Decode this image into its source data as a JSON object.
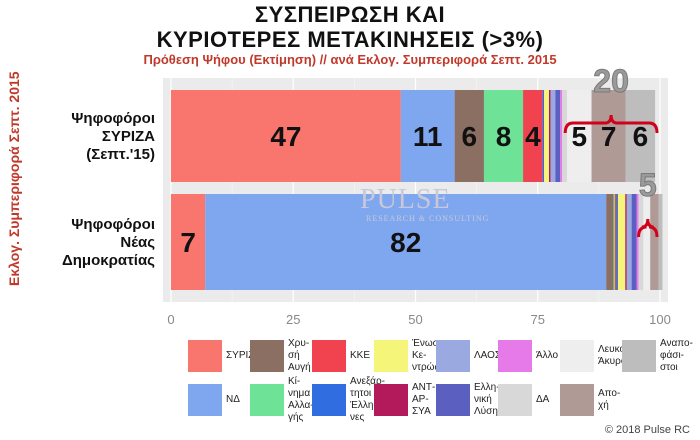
{
  "title_line1": "ΣΥΣΠΕΙΡΩΣΗ ΚΑΙ",
  "title_line2": "ΚΥΡΙΟΤΕΡΕΣ ΜΕΤΑΚΙΝΗΣΕΙΣ (>3%)",
  "subtitle": "Πρόθεση Ψήφου (Εκτίμηση) // ανά Εκλογ. Συμπεριφορά Σεπτ. 2015",
  "watermark": "PULSE",
  "watermark_sub": "RESEARCH & CONSULTING",
  "copyright": "© 2018 Pulse RC",
  "chart_data": {
    "type": "bar",
    "orientation": "horizontal",
    "stacked": true,
    "ylabel": "Εκλογ. Συμπεριφορά Σεπτ. 2015",
    "xlim": [
      0,
      100
    ],
    "xticks": [
      "0",
      "25",
      "50",
      "75",
      "100"
    ],
    "categories": [
      [
        "Ψηφοφόροι",
        "ΣΥΡΙΖΑ",
        "(Σεπτ.'15)"
      ],
      [
        "Ψηφοφόροι",
        "Νέας",
        "Δημοκρατίας"
      ]
    ],
    "series": [
      {
        "name": "ΣΥΡΙΖΑ",
        "color": "#f8766d",
        "values": [
          47,
          7
        ],
        "labels": [
          "47",
          "7"
        ]
      },
      {
        "name": "ΝΔ",
        "color": "#7fa7ef",
        "values": [
          11,
          82
        ],
        "labels": [
          "11",
          "82"
        ]
      },
      {
        "name": "Χρυσή Αυγή",
        "color": "#8c6f63",
        "values": [
          6,
          1.5
        ],
        "labels": [
          "6",
          ""
        ]
      },
      {
        "name": "Κίνημα Αλλαγής",
        "color": "#6ee398",
        "values": [
          8,
          0.3
        ],
        "labels": [
          "8",
          ""
        ]
      },
      {
        "name": "ΚΚΕ",
        "color": "#f0434f",
        "values": [
          4,
          0.3
        ],
        "labels": [
          "4",
          ""
        ]
      },
      {
        "name": "Ανεξάρτητοι Έλληνες",
        "color": "#2f6de0",
        "values": [
          0.3,
          0.3
        ],
        "labels": [
          "",
          ""
        ]
      },
      {
        "name": "Ένωση Κεντρώων",
        "color": "#f5f57a",
        "values": [
          1,
          1.5
        ],
        "labels": [
          "",
          ""
        ]
      },
      {
        "name": "ΑΝΤΑΡΣΥΑ",
        "color": "#b31a5c",
        "values": [
          0.3,
          0.3
        ],
        "labels": [
          "",
          ""
        ]
      },
      {
        "name": "ΛΑΟΣ",
        "color": "#9aa9e0",
        "values": [
          1,
          1
        ],
        "labels": [
          "",
          ""
        ]
      },
      {
        "name": "Ελληνική Λύση",
        "color": "#5b5fbf",
        "values": [
          1,
          1
        ],
        "labels": [
          "",
          ""
        ]
      },
      {
        "name": "Άλλο",
        "color": "#e57ae8",
        "values": [
          0.4,
          0.4
        ],
        "labels": [
          "",
          ""
        ]
      },
      {
        "name": "ΔΑ",
        "color": "#d8d8d8",
        "values": [
          1,
          1
        ],
        "labels": [
          "",
          ""
        ]
      },
      {
        "name": "Λευκό Άκυρο",
        "color": "#eeeeee",
        "values": [
          5,
          1.4
        ],
        "labels": [
          "5",
          ""
        ]
      },
      {
        "name": "Αποχή",
        "color": "#b09a96",
        "values": [
          7,
          1.7
        ],
        "labels": [
          "7",
          ""
        ]
      },
      {
        "name": "Αναποφάσιστοι",
        "color": "#bdbdbd",
        "values": [
          6,
          0.8
        ],
        "labels": [
          "6",
          ""
        ]
      }
    ],
    "annotations": [
      {
        "text": "20",
        "bar": 0,
        "from": 80,
        "to": 100
      },
      {
        "text": "5",
        "bar": 1,
        "from": 95,
        "to": 100
      }
    ],
    "legend": {
      "placement": "bottom",
      "items": [
        {
          "lines": [
            "ΣΥΡΙΖΑ"
          ],
          "color": "#f8766d"
        },
        {
          "lines": [
            "Χρυ-",
            "σή",
            "Αυγή"
          ],
          "color": "#8c6f63"
        },
        {
          "lines": [
            "ΚΚΕ"
          ],
          "color": "#f0434f"
        },
        {
          "lines": [
            "Ένωση",
            "Κε-",
            "ντρώων"
          ],
          "color": "#f5f57a"
        },
        {
          "lines": [
            "ΛΑΟΣ"
          ],
          "color": "#9aa9e0"
        },
        {
          "lines": [
            "Άλλο"
          ],
          "color": "#e57ae8"
        },
        {
          "lines": [
            "Λευκό",
            "Άκυρο"
          ],
          "color": "#eeeeee"
        },
        {
          "lines": [
            "Αναπο-",
            "φάσι-",
            "στοι"
          ],
          "color": "#bdbdbd"
        },
        {
          "lines": [
            "ΝΔ"
          ],
          "color": "#7fa7ef"
        },
        {
          "lines": [
            "Κί-",
            "νημα",
            "Αλλα-",
            "γής"
          ],
          "color": "#6ee398"
        },
        {
          "lines": [
            "Ανεξάρ-",
            "τητοι",
            "Έλλη-",
            "νες"
          ],
          "color": "#2f6de0"
        },
        {
          "lines": [
            "ΑΝΤ-",
            "ΑΡ-",
            "ΣΥΑ"
          ],
          "color": "#b31a5c"
        },
        {
          "lines": [
            "Ελλη-",
            "νική",
            "Λύση"
          ],
          "color": "#5b5fbf"
        },
        {
          "lines": [
            "ΔΑ"
          ],
          "color": "#d8d8d8"
        },
        {
          "lines": [
            "Απο-",
            "χή"
          ],
          "color": "#b09a96"
        }
      ]
    }
  }
}
